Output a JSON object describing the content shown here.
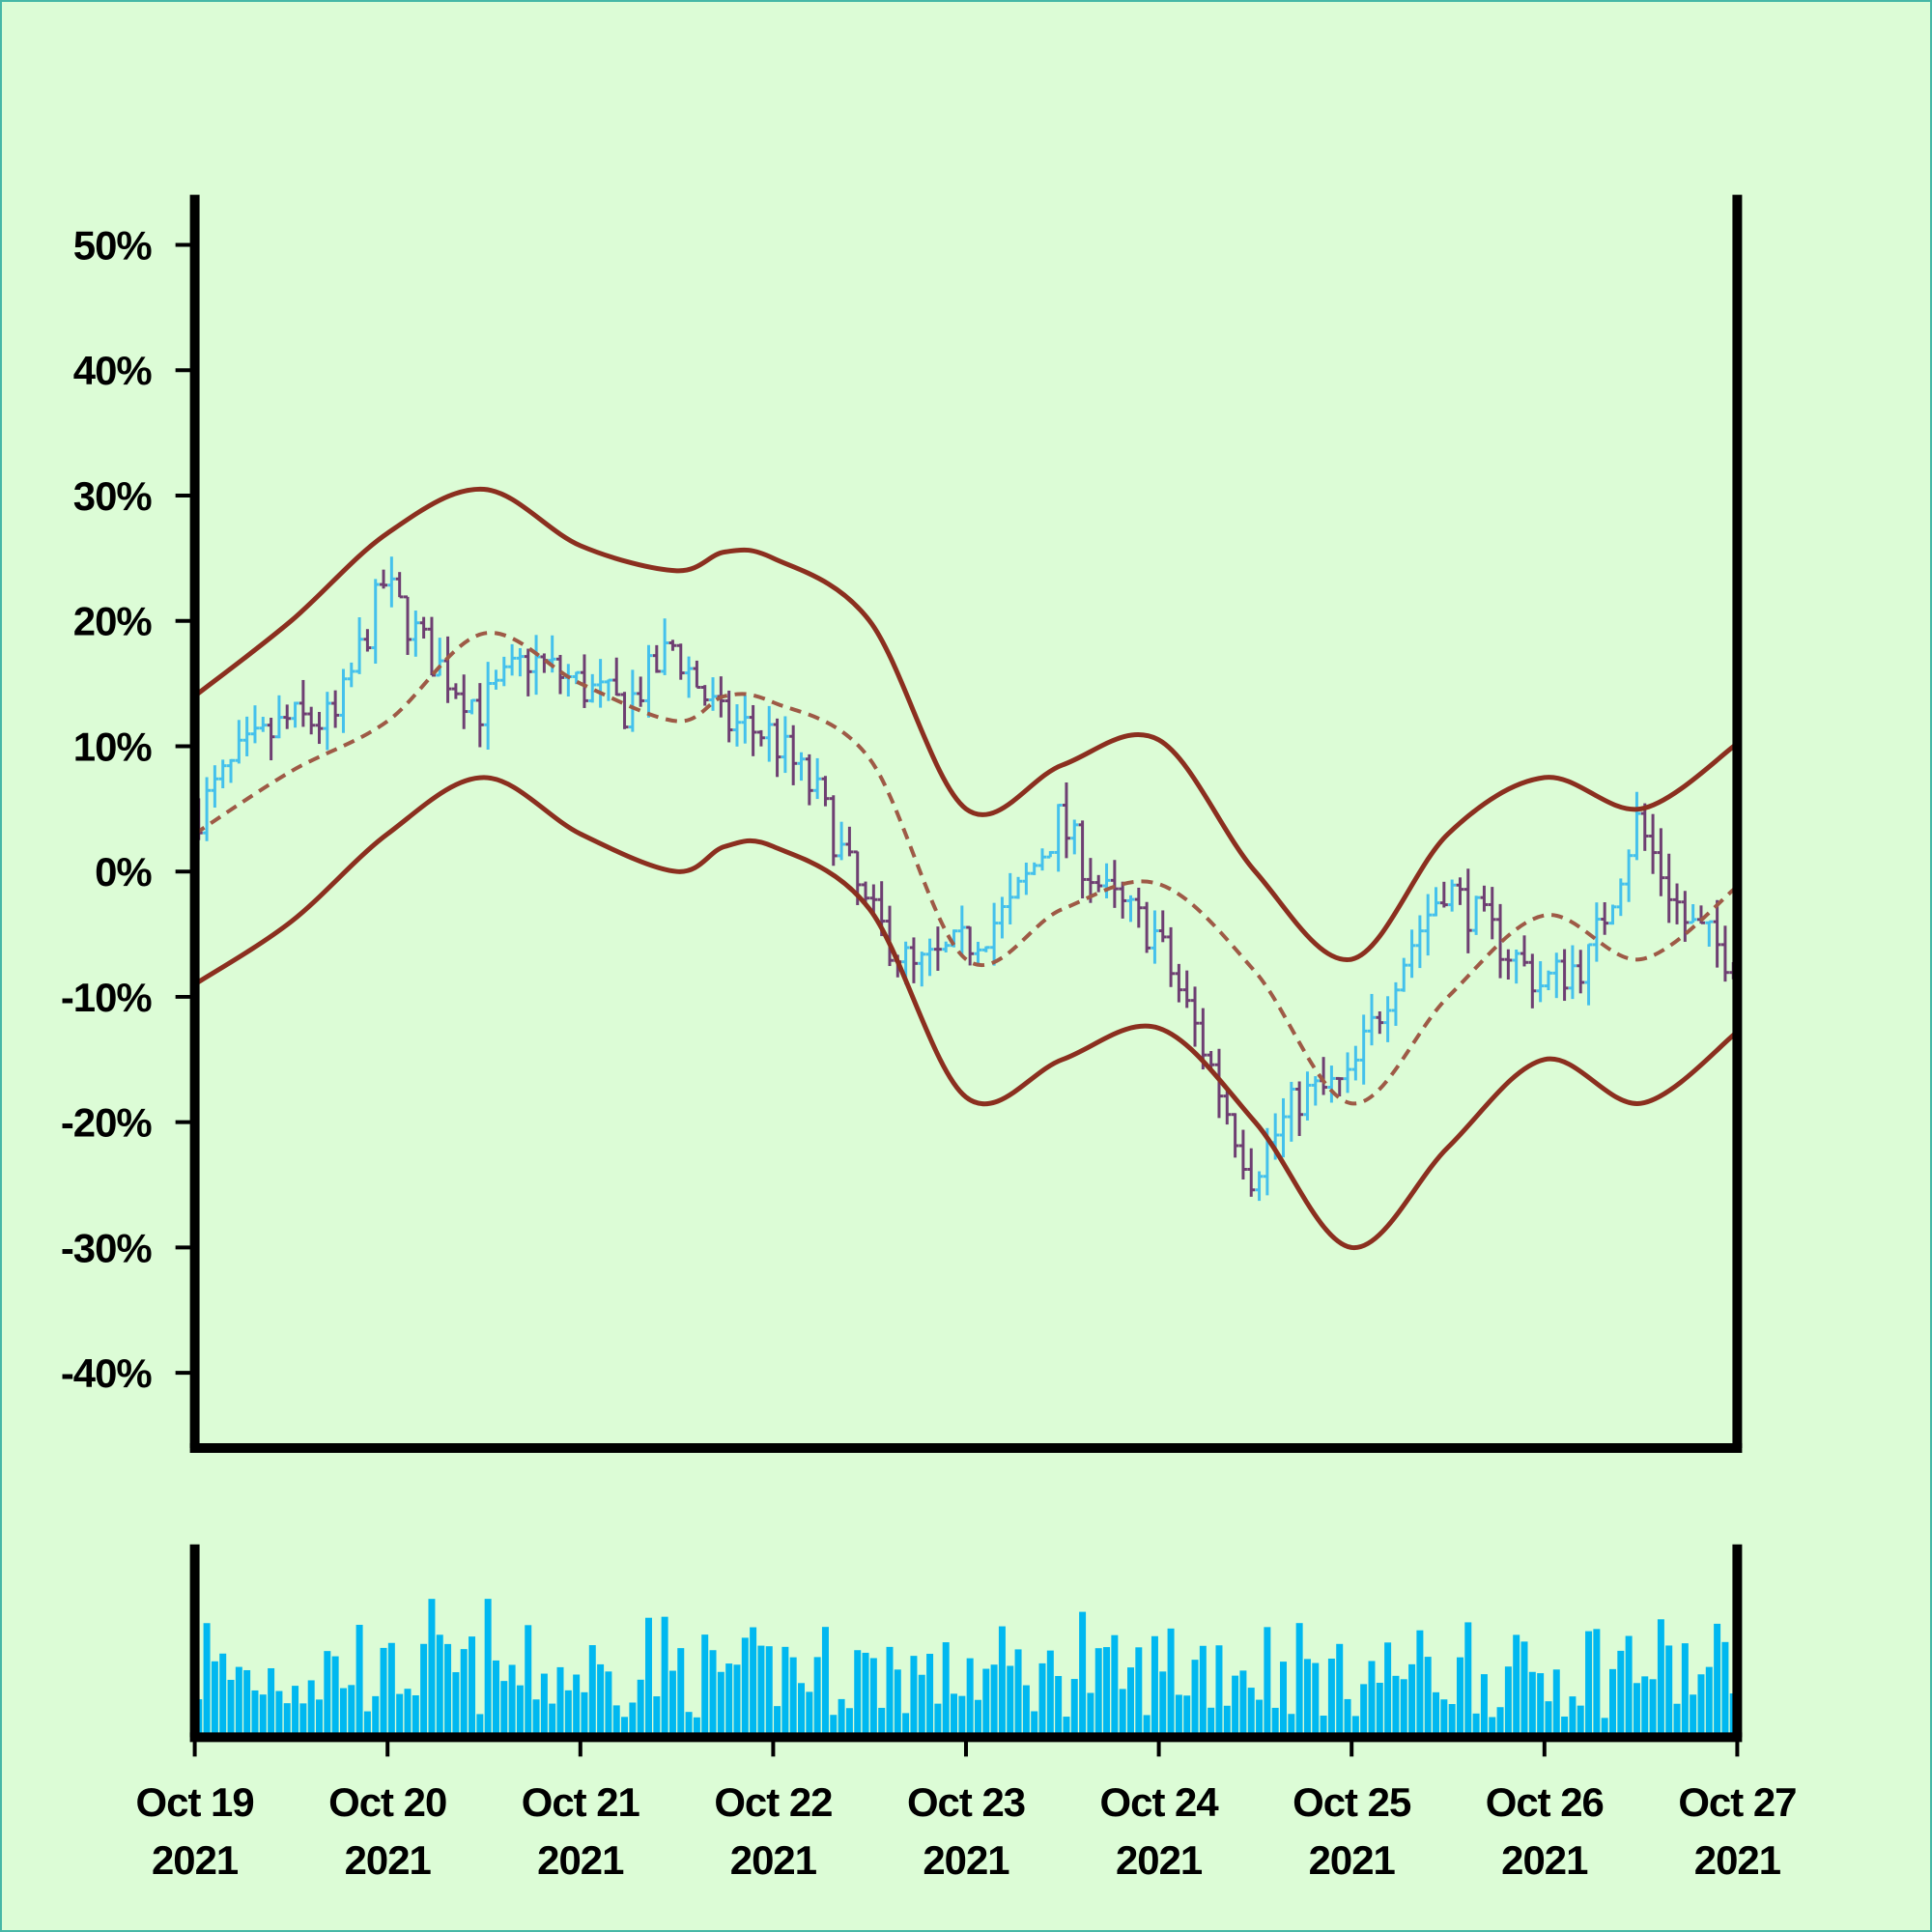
{
  "chart_data": {
    "type": "ohlc",
    "title": "",
    "xlabel": "",
    "ylabel": "",
    "y_format": "percent",
    "ylim": [
      -0.46,
      0.54
    ],
    "y_ticks": [
      {
        "value": 0.5,
        "label": "50%"
      },
      {
        "value": 0.4,
        "label": "40%"
      },
      {
        "value": 0.3,
        "label": "30%"
      },
      {
        "value": 0.2,
        "label": "20%"
      },
      {
        "value": 0.1,
        "label": "10%"
      },
      {
        "value": 0.0,
        "label": "0%"
      },
      {
        "value": -0.1,
        "label": "-10%"
      },
      {
        "value": -0.2,
        "label": "-20%"
      },
      {
        "value": -0.3,
        "label": "-30%"
      },
      {
        "value": -0.4,
        "label": "-40%"
      }
    ],
    "x_range": [
      "2021-10-19",
      "2021-10-27"
    ],
    "x_ticks": [
      {
        "date": "2021-10-19",
        "line1": "Oct 19",
        "line2": "2021"
      },
      {
        "date": "2021-10-20",
        "line1": "Oct 20",
        "line2": "2021"
      },
      {
        "date": "2021-10-21",
        "line1": "Oct 21",
        "line2": "2021"
      },
      {
        "date": "2021-10-22",
        "line1": "Oct 22",
        "line2": "2021"
      },
      {
        "date": "2021-10-23",
        "line1": "Oct 23",
        "line2": "2021"
      },
      {
        "date": "2021-10-24",
        "line1": "Oct 24",
        "line2": "2021"
      },
      {
        "date": "2021-10-25",
        "line1": "Oct 25",
        "line2": "2021"
      },
      {
        "date": "2021-10-26",
        "line1": "Oct 26",
        "line2": "2021"
      },
      {
        "date": "2021-10-27",
        "line1": "Oct 27",
        "line2": "2021"
      }
    ],
    "grid": false,
    "legend": "none",
    "bar_interval_hours": 1,
    "close_path": [
      {
        "t": "2021-10-19T00:00",
        "v": 0.04
      },
      {
        "t": "2021-10-19T06:00",
        "v": 0.09
      },
      {
        "t": "2021-10-19T12:00",
        "v": 0.12
      },
      {
        "t": "2021-10-19T18:00",
        "v": 0.12
      },
      {
        "t": "2021-10-20T00:00",
        "v": 0.23
      },
      {
        "t": "2021-10-20T06:00",
        "v": 0.17
      },
      {
        "t": "2021-10-20T12:00",
        "v": 0.13
      },
      {
        "t": "2021-10-20T18:00",
        "v": 0.17
      },
      {
        "t": "2021-10-21T00:00",
        "v": 0.15
      },
      {
        "t": "2021-10-21T06:00",
        "v": 0.13
      },
      {
        "t": "2021-10-21T12:00",
        "v": 0.18
      },
      {
        "t": "2021-10-21T18:00",
        "v": 0.12
      },
      {
        "t": "2021-10-22T00:00",
        "v": 0.11
      },
      {
        "t": "2021-10-22T06:00",
        "v": 0.06
      },
      {
        "t": "2021-10-22T12:00",
        "v": -0.03
      },
      {
        "t": "2021-10-22T18:00",
        "v": -0.08
      },
      {
        "t": "2021-10-23T00:00",
        "v": -0.06
      },
      {
        "t": "2021-10-23T06:00",
        "v": -0.03
      },
      {
        "t": "2021-10-23T12:00",
        "v": 0.04
      },
      {
        "t": "2021-10-23T18:00",
        "v": -0.02
      },
      {
        "t": "2021-10-24T00:00",
        "v": -0.05
      },
      {
        "t": "2021-10-24T06:00",
        "v": -0.14
      },
      {
        "t": "2021-10-24T12:00",
        "v": -0.24
      },
      {
        "t": "2021-10-24T18:00",
        "v": -0.18
      },
      {
        "t": "2021-10-25T00:00",
        "v": -0.17
      },
      {
        "t": "2021-10-25T06:00",
        "v": -0.08
      },
      {
        "t": "2021-10-25T12:00",
        "v": -0.01
      },
      {
        "t": "2021-10-25T18:00",
        "v": -0.05
      },
      {
        "t": "2021-10-26T00:00",
        "v": -0.09
      },
      {
        "t": "2021-10-26T06:00",
        "v": -0.07
      },
      {
        "t": "2021-10-26T12:00",
        "v": 0.04
      },
      {
        "t": "2021-10-26T18:00",
        "v": -0.04
      },
      {
        "t": "2021-10-27T00:00",
        "v": -0.07
      }
    ],
    "moving_average": [
      {
        "t": "2021-10-19T00:00",
        "v": 0.03
      },
      {
        "t": "2021-10-19T12:00",
        "v": 0.08
      },
      {
        "t": "2021-10-20T00:00",
        "v": 0.12
      },
      {
        "t": "2021-10-20T12:00",
        "v": 0.19
      },
      {
        "t": "2021-10-21T00:00",
        "v": 0.15
      },
      {
        "t": "2021-10-21T12:00",
        "v": 0.12
      },
      {
        "t": "2021-10-21T18:00",
        "v": 0.14
      },
      {
        "t": "2021-10-22T00:00",
        "v": 0.135
      },
      {
        "t": "2021-10-22T12:00",
        "v": 0.09
      },
      {
        "t": "2021-10-23T00:00",
        "v": -0.07
      },
      {
        "t": "2021-10-23T12:00",
        "v": -0.03
      },
      {
        "t": "2021-10-24T00:00",
        "v": -0.01
      },
      {
        "t": "2021-10-24T12:00",
        "v": -0.08
      },
      {
        "t": "2021-10-25T00:00",
        "v": -0.185
      },
      {
        "t": "2021-10-25T12:00",
        "v": -0.1
      },
      {
        "t": "2021-10-26T00:00",
        "v": -0.035
      },
      {
        "t": "2021-10-26T12:00",
        "v": -0.07
      },
      {
        "t": "2021-10-27T00:00",
        "v": -0.012
      }
    ],
    "upper_band": [
      {
        "t": "2021-10-19T00:00",
        "v": 0.14
      },
      {
        "t": "2021-10-19T12:00",
        "v": 0.2
      },
      {
        "t": "2021-10-20T00:00",
        "v": 0.27
      },
      {
        "t": "2021-10-20T12:00",
        "v": 0.305
      },
      {
        "t": "2021-10-21T00:00",
        "v": 0.26
      },
      {
        "t": "2021-10-21T12:00",
        "v": 0.24
      },
      {
        "t": "2021-10-21T18:00",
        "v": 0.255
      },
      {
        "t": "2021-10-22T00:00",
        "v": 0.25
      },
      {
        "t": "2021-10-22T12:00",
        "v": 0.2
      },
      {
        "t": "2021-10-23T00:00",
        "v": 0.05
      },
      {
        "t": "2021-10-23T12:00",
        "v": 0.085
      },
      {
        "t": "2021-10-24T00:00",
        "v": 0.105
      },
      {
        "t": "2021-10-24T12:00",
        "v": 0.0
      },
      {
        "t": "2021-10-25T00:00",
        "v": -0.07
      },
      {
        "t": "2021-10-25T12:00",
        "v": 0.03
      },
      {
        "t": "2021-10-26T00:00",
        "v": 0.075
      },
      {
        "t": "2021-10-26T12:00",
        "v": 0.05
      },
      {
        "t": "2021-10-27T00:00",
        "v": 0.102
      }
    ],
    "lower_band": [
      {
        "t": "2021-10-19T00:00",
        "v": -0.09
      },
      {
        "t": "2021-10-19T12:00",
        "v": -0.04
      },
      {
        "t": "2021-10-20T00:00",
        "v": 0.03
      },
      {
        "t": "2021-10-20T12:00",
        "v": 0.075
      },
      {
        "t": "2021-10-21T00:00",
        "v": 0.03
      },
      {
        "t": "2021-10-21T12:00",
        "v": 0.0
      },
      {
        "t": "2021-10-21T18:00",
        "v": 0.02
      },
      {
        "t": "2021-10-22T00:00",
        "v": 0.02
      },
      {
        "t": "2021-10-22T12:00",
        "v": -0.03
      },
      {
        "t": "2021-10-23T00:00",
        "v": -0.18
      },
      {
        "t": "2021-10-23T12:00",
        "v": -0.15
      },
      {
        "t": "2021-10-24T00:00",
        "v": -0.125
      },
      {
        "t": "2021-10-24T12:00",
        "v": -0.2
      },
      {
        "t": "2021-10-25T00:00",
        "v": -0.3
      },
      {
        "t": "2021-10-25T12:00",
        "v": -0.22
      },
      {
        "t": "2021-10-26T00:00",
        "v": -0.15
      },
      {
        "t": "2021-10-26T12:00",
        "v": -0.185
      },
      {
        "t": "2021-10-27T00:00",
        "v": -0.128
      }
    ],
    "colors": {
      "background": "#dcfcd6",
      "border": "#46b7a7",
      "axis": "#000000",
      "up": "#44c1ec",
      "down": "#6e3f72",
      "band": "#8b2f1f",
      "moving_average": "#9e5a46",
      "volume": "#00b8f0"
    }
  }
}
